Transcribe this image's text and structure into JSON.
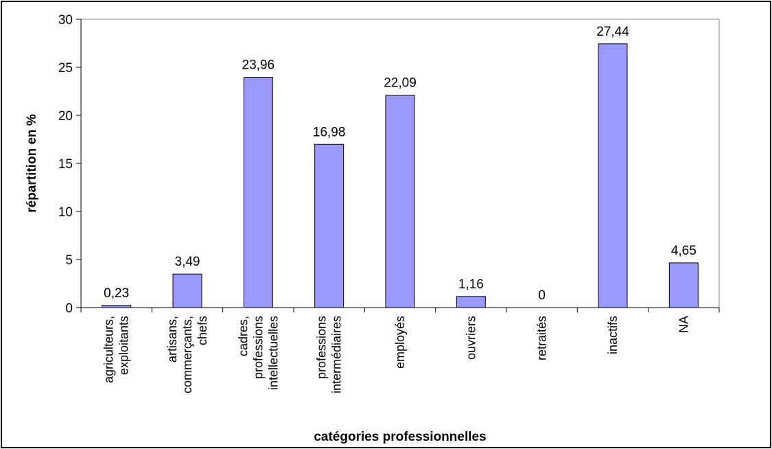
{
  "chart_data": {
    "type": "bar",
    "categories": [
      [
        "agriculteurs,",
        "exploitants"
      ],
      [
        "artisans,",
        "commerçants,",
        "chefs"
      ],
      [
        "cadres,",
        "professions",
        "intellectuelles"
      ],
      [
        "professions",
        "intermédiaires"
      ],
      [
        "employés"
      ],
      [
        "ouvriers"
      ],
      [
        "retraités"
      ],
      [
        "inactifs"
      ],
      [
        "NA"
      ]
    ],
    "values": [
      0.23,
      3.49,
      23.96,
      16.98,
      22.09,
      1.16,
      0,
      27.44,
      4.65
    ],
    "data_labels": [
      "0,23",
      "3,49",
      "23,96",
      "16,98",
      "22,09",
      "1,16",
      "0",
      "27,44",
      "4,65"
    ],
    "xlabel": "catégories professionnelles",
    "ylabel": "répartition en %",
    "ylim": [
      0,
      30
    ],
    "yticks": [
      "0",
      "5",
      "10",
      "15",
      "20",
      "25",
      "30"
    ],
    "grid": false,
    "legend": "none",
    "colors": {
      "bar_fill": "#9999ff",
      "bar_stroke": "#000000",
      "plot_bg": "#ffffff"
    }
  }
}
